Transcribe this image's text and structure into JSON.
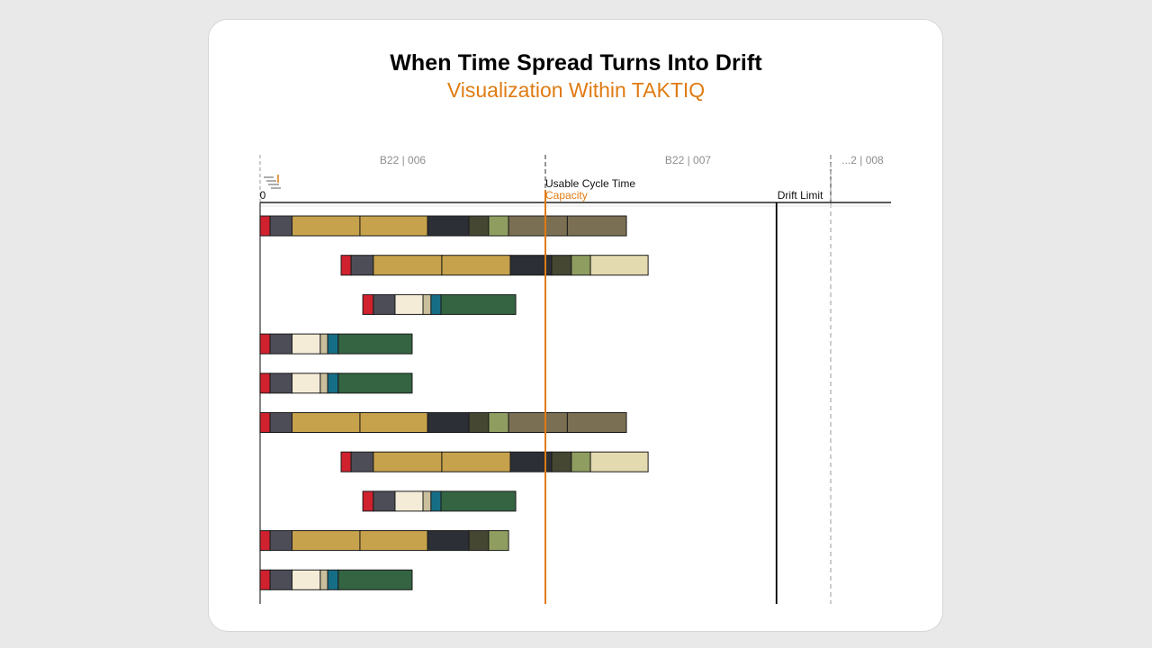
{
  "title": "When Time Spread Turns Into Drift",
  "subtitle": "Visualization Within TAKTIQ",
  "chart_data": {
    "type": "gantt-stacked-bar",
    "x_zero_label": "0",
    "x_max": 2.22,
    "periods": [
      {
        "label": "B22 | 006",
        "start": 0,
        "end": 1
      },
      {
        "label": "B22 | 007",
        "start": 1,
        "end": 2
      },
      {
        "label": "...2 | 008",
        "start": 2,
        "end": 2.22
      }
    ],
    "reference_lines": [
      {
        "name": "usable-cycle-time",
        "label": "Usable Cycle Time",
        "value": 1.0,
        "color": "#e07b12"
      },
      {
        "name": "capacity",
        "label": "Capacity",
        "value": 1.0,
        "color": "#e07b12"
      },
      {
        "name": "drift-limit",
        "label": "Drift Limit",
        "value": 1.81,
        "color": "#000000"
      }
    ],
    "colors": {
      "red": "#d0212e",
      "slate": "#4d4d58",
      "gold": "#c7a24c",
      "charcoal": "#2c2f35",
      "olive_dark": "#454733",
      "sage": "#8f9e60",
      "taupe": "#7b6f53",
      "cream": "#e4dab0",
      "ivory": "#f4ecd7",
      "beige": "#c9bf9c",
      "teal": "#166e86",
      "forest": "#346442"
    },
    "rows": [
      {
        "segments": [
          {
            "start": 0.0,
            "end": 0.035,
            "color": "red"
          },
          {
            "start": 0.035,
            "end": 0.112,
            "color": "slate"
          },
          {
            "start": 0.112,
            "end": 0.35,
            "color": "gold"
          },
          {
            "start": 0.35,
            "end": 0.587,
            "color": "gold"
          },
          {
            "start": 0.587,
            "end": 0.732,
            "color": "charcoal"
          },
          {
            "start": 0.732,
            "end": 0.801,
            "color": "olive_dark"
          },
          {
            "start": 0.801,
            "end": 0.871,
            "color": "sage"
          },
          {
            "start": 0.871,
            "end": 1.077,
            "color": "taupe"
          },
          {
            "start": 1.077,
            "end": 1.284,
            "color": "taupe"
          }
        ]
      },
      {
        "segments": [
          {
            "start": 0.284,
            "end": 0.319,
            "color": "red"
          },
          {
            "start": 0.319,
            "end": 0.397,
            "color": "slate"
          },
          {
            "start": 0.397,
            "end": 0.637,
            "color": "gold"
          },
          {
            "start": 0.637,
            "end": 0.877,
            "color": "gold"
          },
          {
            "start": 0.877,
            "end": 1.022,
            "color": "charcoal"
          },
          {
            "start": 1.022,
            "end": 1.091,
            "color": "olive_dark"
          },
          {
            "start": 1.091,
            "end": 1.158,
            "color": "sage"
          },
          {
            "start": 1.158,
            "end": 1.36,
            "color": "cream"
          }
        ]
      },
      {
        "segments": [
          {
            "start": 0.36,
            "end": 0.397,
            "color": "red"
          },
          {
            "start": 0.397,
            "end": 0.473,
            "color": "slate"
          },
          {
            "start": 0.473,
            "end": 0.571,
            "color": "ivory"
          },
          {
            "start": 0.571,
            "end": 0.599,
            "color": "beige"
          },
          {
            "start": 0.599,
            "end": 0.634,
            "color": "teal"
          },
          {
            "start": 0.634,
            "end": 0.896,
            "color": "forest"
          }
        ]
      },
      {
        "segments": [
          {
            "start": 0.0,
            "end": 0.035,
            "color": "red"
          },
          {
            "start": 0.035,
            "end": 0.112,
            "color": "slate"
          },
          {
            "start": 0.112,
            "end": 0.211,
            "color": "ivory"
          },
          {
            "start": 0.211,
            "end": 0.237,
            "color": "beige"
          },
          {
            "start": 0.237,
            "end": 0.274,
            "color": "teal"
          },
          {
            "start": 0.274,
            "end": 0.533,
            "color": "forest"
          }
        ]
      },
      {
        "segments": [
          {
            "start": 0.0,
            "end": 0.035,
            "color": "red"
          },
          {
            "start": 0.035,
            "end": 0.112,
            "color": "slate"
          },
          {
            "start": 0.112,
            "end": 0.211,
            "color": "ivory"
          },
          {
            "start": 0.211,
            "end": 0.237,
            "color": "beige"
          },
          {
            "start": 0.237,
            "end": 0.274,
            "color": "teal"
          },
          {
            "start": 0.274,
            "end": 0.533,
            "color": "forest"
          }
        ]
      },
      {
        "segments": [
          {
            "start": 0.0,
            "end": 0.035,
            "color": "red"
          },
          {
            "start": 0.035,
            "end": 0.112,
            "color": "slate"
          },
          {
            "start": 0.112,
            "end": 0.35,
            "color": "gold"
          },
          {
            "start": 0.35,
            "end": 0.587,
            "color": "gold"
          },
          {
            "start": 0.587,
            "end": 0.732,
            "color": "charcoal"
          },
          {
            "start": 0.732,
            "end": 0.801,
            "color": "olive_dark"
          },
          {
            "start": 0.801,
            "end": 0.871,
            "color": "sage"
          },
          {
            "start": 0.871,
            "end": 1.077,
            "color": "taupe"
          },
          {
            "start": 1.077,
            "end": 1.284,
            "color": "taupe"
          }
        ]
      },
      {
        "segments": [
          {
            "start": 0.284,
            "end": 0.319,
            "color": "red"
          },
          {
            "start": 0.319,
            "end": 0.397,
            "color": "slate"
          },
          {
            "start": 0.397,
            "end": 0.637,
            "color": "gold"
          },
          {
            "start": 0.637,
            "end": 0.877,
            "color": "gold"
          },
          {
            "start": 0.877,
            "end": 1.022,
            "color": "charcoal"
          },
          {
            "start": 1.022,
            "end": 1.091,
            "color": "olive_dark"
          },
          {
            "start": 1.091,
            "end": 1.158,
            "color": "sage"
          },
          {
            "start": 1.158,
            "end": 1.36,
            "color": "cream"
          }
        ]
      },
      {
        "segments": [
          {
            "start": 0.36,
            "end": 0.397,
            "color": "red"
          },
          {
            "start": 0.397,
            "end": 0.473,
            "color": "slate"
          },
          {
            "start": 0.473,
            "end": 0.571,
            "color": "ivory"
          },
          {
            "start": 0.571,
            "end": 0.599,
            "color": "beige"
          },
          {
            "start": 0.599,
            "end": 0.634,
            "color": "teal"
          },
          {
            "start": 0.634,
            "end": 0.896,
            "color": "forest"
          }
        ]
      },
      {
        "segments": [
          {
            "start": 0.0,
            "end": 0.035,
            "color": "red"
          },
          {
            "start": 0.035,
            "end": 0.112,
            "color": "slate"
          },
          {
            "start": 0.112,
            "end": 0.35,
            "color": "gold"
          },
          {
            "start": 0.35,
            "end": 0.587,
            "color": "gold"
          },
          {
            "start": 0.587,
            "end": 0.732,
            "color": "charcoal"
          },
          {
            "start": 0.732,
            "end": 0.801,
            "color": "olive_dark"
          },
          {
            "start": 0.801,
            "end": 0.871,
            "color": "sage"
          }
        ]
      },
      {
        "segments": [
          {
            "start": 0.0,
            "end": 0.035,
            "color": "red"
          },
          {
            "start": 0.035,
            "end": 0.112,
            "color": "slate"
          },
          {
            "start": 0.112,
            "end": 0.211,
            "color": "ivory"
          },
          {
            "start": 0.211,
            "end": 0.237,
            "color": "beige"
          },
          {
            "start": 0.237,
            "end": 0.274,
            "color": "teal"
          },
          {
            "start": 0.274,
            "end": 0.533,
            "color": "forest"
          }
        ]
      }
    ]
  }
}
